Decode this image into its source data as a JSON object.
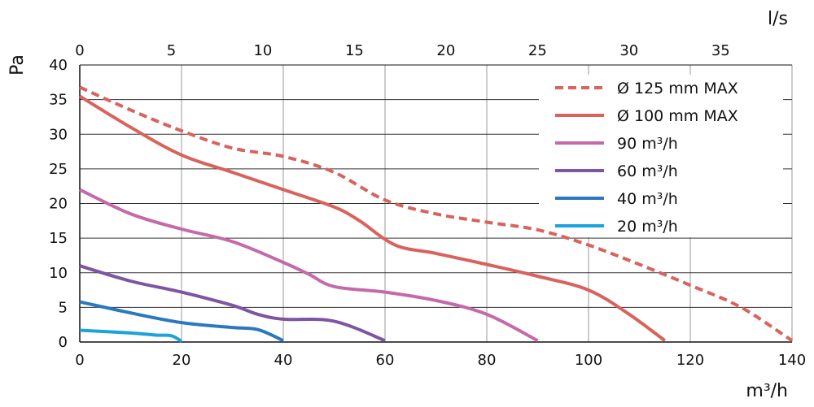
{
  "chart_data": {
    "type": "line",
    "xlabel": "m³/h",
    "x2label": "l/s",
    "ylabel": "Pa",
    "xlim": [
      0,
      140
    ],
    "ylim": [
      0,
      40
    ],
    "x_ticks": [
      0,
      20,
      40,
      60,
      80,
      100,
      120,
      140
    ],
    "x2_ticks": [
      0,
      5,
      10,
      15,
      20,
      25,
      30,
      35
    ],
    "y_ticks": [
      0,
      5,
      10,
      15,
      20,
      25,
      30,
      35,
      40
    ],
    "grid": true,
    "legend_position": "top-right",
    "series": [
      {
        "name": "Ø 125 mm MAX",
        "color": "#d9625d",
        "dashed": true,
        "points": [
          [
            0,
            36.8
          ],
          [
            10,
            33.5
          ],
          [
            20,
            30.5
          ],
          [
            30,
            28
          ],
          [
            40,
            26.8
          ],
          [
            50,
            24.5
          ],
          [
            60,
            20.5
          ],
          [
            70,
            18.5
          ],
          [
            80,
            17.3
          ],
          [
            90,
            16.2
          ],
          [
            100,
            14
          ],
          [
            110,
            11.2
          ],
          [
            120,
            8.2
          ],
          [
            130,
            5
          ],
          [
            140,
            0.2
          ]
        ]
      },
      {
        "name": "Ø 100 mm MAX",
        "color": "#d9625d",
        "dashed": false,
        "points": [
          [
            0,
            35.5
          ],
          [
            10,
            31
          ],
          [
            20,
            27
          ],
          [
            30,
            24.5
          ],
          [
            40,
            22
          ],
          [
            50,
            19.5
          ],
          [
            55,
            17.5
          ],
          [
            62,
            14
          ],
          [
            70,
            12.8
          ],
          [
            80,
            11.2
          ],
          [
            90,
            9.5
          ],
          [
            100,
            7.5
          ],
          [
            108,
            4
          ],
          [
            115,
            0.2
          ]
        ]
      },
      {
        "name": "90 m³/h",
        "color": "#c46aaa",
        "dashed": false,
        "points": [
          [
            0,
            22
          ],
          [
            10,
            18.5
          ],
          [
            20,
            16.3
          ],
          [
            30,
            14.5
          ],
          [
            40,
            11.5
          ],
          [
            45,
            9.8
          ],
          [
            50,
            8
          ],
          [
            60,
            7.2
          ],
          [
            70,
            6
          ],
          [
            80,
            4
          ],
          [
            90,
            0.2
          ]
        ]
      },
      {
        "name": "60 m³/h",
        "color": "#7d55a3",
        "dashed": false,
        "points": [
          [
            0,
            11
          ],
          [
            10,
            8.8
          ],
          [
            20,
            7.2
          ],
          [
            30,
            5.3
          ],
          [
            35,
            4
          ],
          [
            40,
            3.3
          ],
          [
            50,
            3
          ],
          [
            60,
            0.2
          ]
        ]
      },
      {
        "name": "40 m³/h",
        "color": "#2b78c0",
        "dashed": false,
        "points": [
          [
            0,
            5.8
          ],
          [
            10,
            4.2
          ],
          [
            20,
            2.8
          ],
          [
            30,
            2.1
          ],
          [
            35,
            1.8
          ],
          [
            40,
            0.2
          ]
        ]
      },
      {
        "name": "20 m³/h",
        "color": "#1aa3dc",
        "dashed": false,
        "points": [
          [
            0,
            1.7
          ],
          [
            10,
            1.3
          ],
          [
            15,
            1
          ],
          [
            18,
            0.9
          ],
          [
            20,
            0.1
          ]
        ]
      }
    ]
  }
}
